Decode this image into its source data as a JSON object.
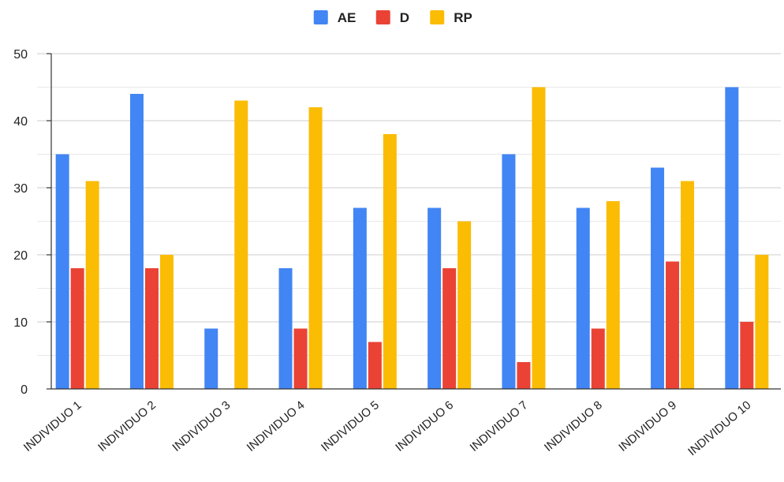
{
  "chart_data": {
    "type": "bar",
    "categories": [
      "INDIVIDUO 1",
      "INDIVIDUO 2",
      "INDIVIDUO 3",
      "INDIVIDUO 4",
      "INDIVIDUO 5",
      "INDIVIDUO 6",
      "INDIVIDUO 7",
      "INDIVIDUO 8",
      "INDIVIDUO 9",
      "INDIVIDUO 10"
    ],
    "series": [
      {
        "name": "AE",
        "color": "#4285F4",
        "values": [
          35,
          44,
          9,
          18,
          27,
          27,
          35,
          27,
          33,
          45
        ]
      },
      {
        "name": "D",
        "color": "#EA4335",
        "values": [
          18,
          18,
          0,
          9,
          7,
          18,
          4,
          9,
          19,
          10
        ]
      },
      {
        "name": "RP",
        "color": "#FBBC04",
        "values": [
          31,
          20,
          43,
          42,
          38,
          25,
          45,
          28,
          31,
          20
        ]
      }
    ],
    "ylim": [
      0,
      50
    ],
    "yticks": [
      0,
      10,
      20,
      30,
      40,
      50
    ],
    "grid": true,
    "legend_position": "top-center",
    "title": "",
    "xlabel": "",
    "ylabel": ""
  }
}
